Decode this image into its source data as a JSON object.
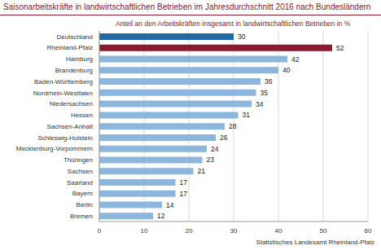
{
  "chart_data": {
    "type": "bar",
    "orientation": "horizontal",
    "title": "Saisonarbeitskräfte in landwirtschaftlichen Betrieben im Jahresdurchschnitt 2016 nach Bundesländern",
    "subtitle": "Anteil an den Arbeitskräften insgesamt in landwirtschaftlichen Betrieben in %",
    "source": "Statistisches Landesamt Rheinland-Pfalz",
    "categories": [
      "Deutschland",
      "Rheinland-Pfalz",
      "Hamburg",
      "Brandenburg",
      "Baden-Württemberg",
      "Nordrhein-Westfalen",
      "Niedersachsen",
      "Hessen",
      "Sachsen-Anhalt",
      "Schleswig-Holstein",
      "Mecklenburg-Vorpommern",
      "Thüringen",
      "Sachsen",
      "Saarland",
      "Bayern",
      "Berlin",
      "Bremen"
    ],
    "values": [
      30,
      52,
      42,
      40,
      36,
      35,
      34,
      31,
      28,
      26,
      24,
      23,
      21,
      17,
      17,
      14,
      12
    ],
    "colors": [
      "#1f6aa5",
      "#8b1a2e",
      "#8cb6dc",
      "#8cb6dc",
      "#8cb6dc",
      "#8cb6dc",
      "#8cb6dc",
      "#8cb6dc",
      "#8cb6dc",
      "#8cb6dc",
      "#8cb6dc",
      "#8cb6dc",
      "#8cb6dc",
      "#8cb6dc",
      "#8cb6dc",
      "#8cb6dc",
      "#8cb6dc"
    ],
    "xlim": [
      0,
      60
    ],
    "xticks": [
      0,
      10,
      20,
      30,
      40,
      50,
      60
    ],
    "grid": true,
    "data_labels": true
  }
}
